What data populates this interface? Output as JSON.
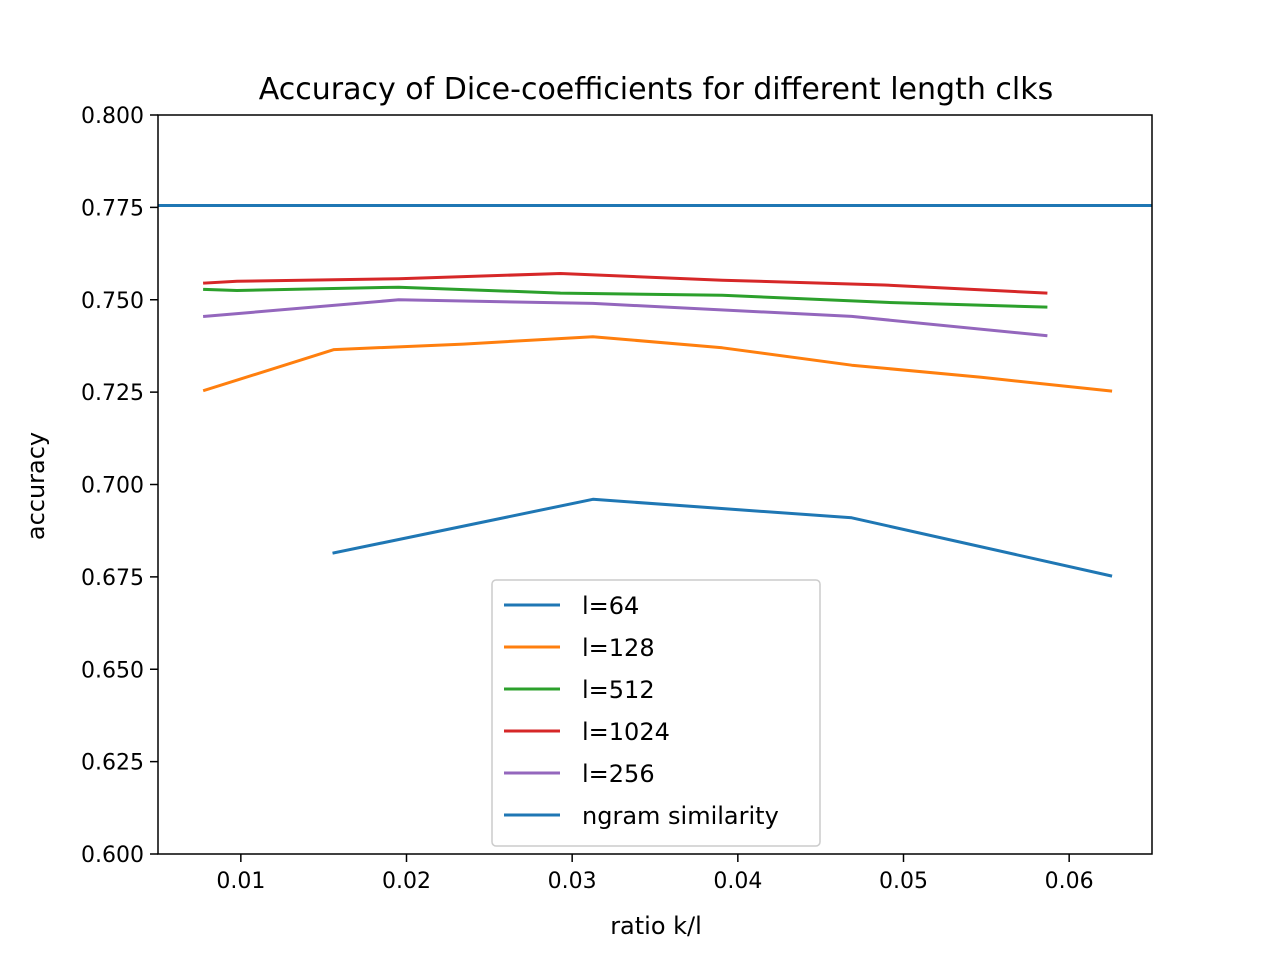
{
  "chart_data": {
    "type": "line",
    "title": "Accuracy of Dice-coefficients for different length clks",
    "xlabel": "ratio k/l",
    "ylabel": "accuracy",
    "xlim": [
      0.005,
      0.065
    ],
    "ylim": [
      0.6,
      0.8
    ],
    "xticks": [
      0.01,
      0.02,
      0.03,
      0.04,
      0.05,
      0.06
    ],
    "xtick_labels": [
      "0.01",
      "0.02",
      "0.03",
      "0.04",
      "0.05",
      "0.06"
    ],
    "yticks": [
      0.6,
      0.625,
      0.65,
      0.675,
      0.7,
      0.725,
      0.75,
      0.775,
      0.8
    ],
    "ytick_labels": [
      "0.600",
      "0.625",
      "0.650",
      "0.675",
      "0.700",
      "0.725",
      "0.750",
      "0.775",
      "0.800"
    ],
    "grid": false,
    "legend_position": "lower-center",
    "series": [
      {
        "name": "l=64",
        "color": "#1f77b4",
        "x": [
          0.015625,
          0.03125,
          0.046875,
          0.0625
        ],
        "y": [
          0.6815,
          0.696,
          0.691,
          0.6753
        ]
      },
      {
        "name": "l=128",
        "color": "#ff7f0e",
        "x": [
          0.0078125,
          0.015625,
          0.0234375,
          0.03125,
          0.0390625,
          0.046875,
          0.0546875,
          0.0625
        ],
        "y": [
          0.7255,
          0.7365,
          0.738,
          0.74,
          0.737,
          0.7323,
          0.729,
          0.7253
        ]
      },
      {
        "name": "l=512",
        "color": "#2ca02c",
        "x": [
          0.0078125,
          0.009765625,
          0.01953125,
          0.029296875,
          0.0390625,
          0.048828125,
          0.05859375
        ],
        "y": [
          0.7528,
          0.7525,
          0.7534,
          0.7518,
          0.7512,
          0.7493,
          0.748
        ]
      },
      {
        "name": "l=1024",
        "color": "#d62728",
        "x": [
          0.0078125,
          0.009765625,
          0.01953125,
          0.029296875,
          0.0390625,
          0.048828125,
          0.05859375
        ],
        "y": [
          0.7545,
          0.755,
          0.7557,
          0.7571,
          0.7553,
          0.754,
          0.7518
        ]
      },
      {
        "name": "l=256",
        "color": "#9467bd",
        "x": [
          0.0078125,
          0.01953125,
          0.03125,
          0.046875,
          0.05859375
        ],
        "y": [
          0.7455,
          0.75,
          0.749,
          0.7455,
          0.7403
        ]
      },
      {
        "name": "ngram similarity",
        "color": "#1f77b4",
        "hline": true,
        "y": 0.7755
      }
    ]
  }
}
